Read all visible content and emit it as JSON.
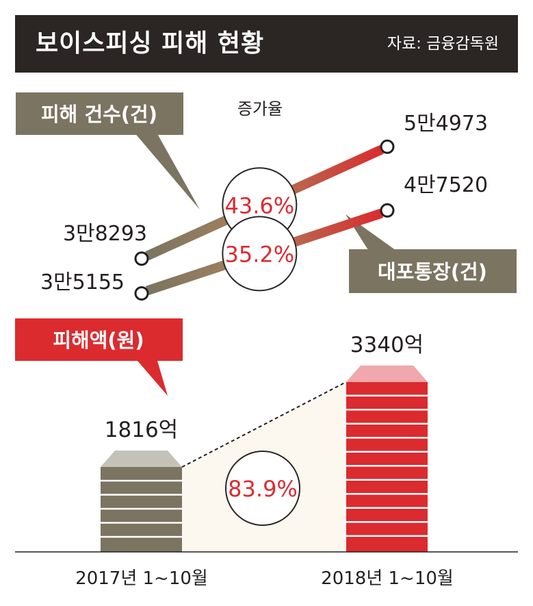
{
  "header": {
    "title": "보이스피싱 피해 현황",
    "source": "자료: 금융감독원"
  },
  "colors": {
    "header_bg": "#2b2523",
    "olive": "#7a7461",
    "red": "#db2b2f",
    "tan": "#a8835c",
    "pink": "#f0a7ad",
    "cap_gray": "#c4c2b8",
    "cream": "#fcf8f0"
  },
  "chart_data": [
    {
      "type": "line",
      "x": [
        "2017년 1~10월",
        "2018년 1~10월"
      ],
      "rate_caption": "증가율",
      "series": [
        {
          "name": "피해 건수(건)",
          "values": [
            38293,
            54973
          ],
          "value_labels": [
            "3만8293",
            "5만4973"
          ],
          "growth": "43.6%"
        },
        {
          "name": "대포통장(건)",
          "values": [
            35155,
            47520
          ],
          "value_labels": [
            "3만5155",
            "4만7520"
          ],
          "growth": "35.2%"
        }
      ]
    },
    {
      "type": "bar",
      "categories": [
        "2017년 1~10월",
        "2018년 1~10월"
      ],
      "series": [
        {
          "name": "피해액(원)",
          "values": [
            1816,
            3340
          ],
          "value_labels": [
            "1816억",
            "3340억"
          ],
          "growth": "83.9%"
        }
      ]
    }
  ]
}
